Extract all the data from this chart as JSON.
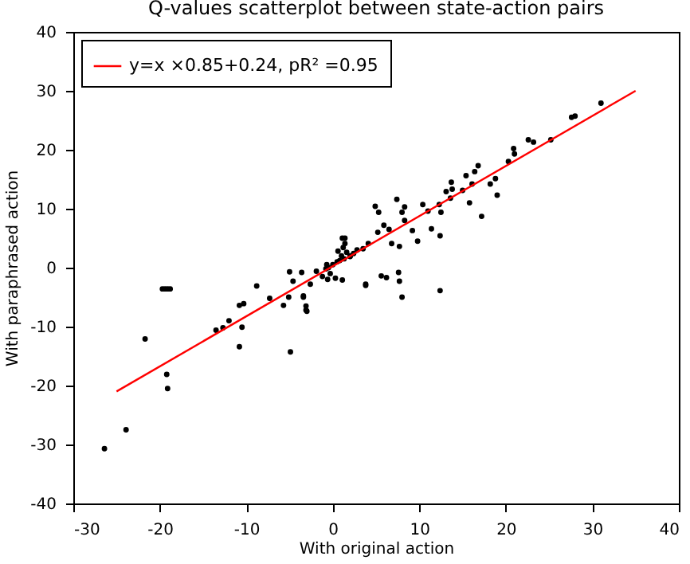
{
  "chart_data": {
    "type": "scatter",
    "title": "Q-values scatterplot between state-action pairs",
    "xlabel": "With original action",
    "ylabel": "With paraphrased action",
    "xlim": [
      -30,
      40
    ],
    "xticks": [
      -30,
      -20,
      -10,
      0,
      10,
      20,
      30,
      40
    ],
    "ylim": [
      -40,
      40
    ],
    "yticks": [
      -40,
      -30,
      -20,
      -10,
      0,
      10,
      20,
      30,
      40
    ],
    "grid": false,
    "legend": "top left",
    "series": [
      {
        "type": "scatter",
        "color": "#000000",
        "marker": "circle",
        "x": [
          -26.4,
          -23.9,
          -21.7,
          -19.7,
          -19.4,
          -19.1,
          -18.8,
          -19.2,
          -19.1,
          -13.5,
          -12.7,
          -12.0,
          -10.8,
          -10.3,
          -10.8,
          -10.5,
          -8.8,
          -7.3,
          -5.7,
          -4.9,
          -5.0,
          -4.6,
          -5.1,
          -3.6,
          -3.4,
          -3.1,
          -2.6,
          -1.9,
          -1.2,
          -0.8,
          -0.5,
          -0.3,
          0.0,
          0.5,
          0.8,
          1.0,
          1.3,
          1.6,
          2.0,
          2.4,
          2.8,
          -0.6,
          0.3,
          0.6,
          1.1,
          1.4,
          1.1,
          3.8,
          31.0,
          27.6,
          28.0,
          25.2,
          22.6,
          23.2,
          20.9,
          21.0,
          20.3,
          18.8,
          19.0,
          18.2,
          16.8,
          16.4,
          16.1,
          15.4,
          15.0,
          15.8,
          13.7,
          13.8,
          13.1,
          13.6,
          12.3,
          17.2,
          12.5,
          11.0,
          10.4,
          12.4,
          11.4,
          9.8,
          9.2,
          8.3,
          8.0,
          7.4,
          8.3,
          12.4,
          8.0,
          7.7,
          7.6,
          6.8,
          6.5,
          5.9,
          5.2,
          4.9,
          5.3,
          7.7,
          5.6,
          6.2,
          3.8,
          4.1,
          3.5,
          1.4,
          1.2,
          2.0,
          -0.7,
          -3.4,
          -3.1,
          -3.0
        ],
        "values": [
          -30.7,
          -27.5,
          -12.1,
          -3.6,
          -3.6,
          -3.6,
          -3.6,
          -18.1,
          -20.5,
          -10.6,
          -10.2,
          -9.0,
          -6.4,
          -6.1,
          -13.4,
          -10.1,
          -3.1,
          -5.2,
          -6.4,
          -14.3,
          -0.7,
          -2.3,
          -5.0,
          -0.8,
          -4.8,
          -7.2,
          -2.8,
          -0.6,
          -1.5,
          -0.2,
          0.0,
          -1.0,
          0.5,
          1.0,
          1.2,
          2.0,
          1.5,
          2.6,
          2.0,
          2.4,
          3.0,
          -2.0,
          -1.8,
          2.8,
          5.0,
          4.1,
          -2.1,
          -2.8,
          27.9,
          25.5,
          25.7,
          21.7,
          21.7,
          21.3,
          20.2,
          19.3,
          18.0,
          15.1,
          12.3,
          14.2,
          17.3,
          16.3,
          14.2,
          15.6,
          13.1,
          11.0,
          14.5,
          13.3,
          12.9,
          11.8,
          10.7,
          8.7,
          9.4,
          9.6,
          10.7,
          5.4,
          6.6,
          4.5,
          6.3,
          8.0,
          9.4,
          11.6,
          10.3,
          -3.9,
          -5.0,
          -2.3,
          -0.8,
          4.1,
          6.5,
          7.2,
          6.0,
          10.4,
          9.4,
          3.6,
          -1.4,
          -1.7,
          -3.0,
          4.1,
          3.2,
          5.0,
          3.4,
          1.9,
          0.5,
          -5.0,
          -6.5,
          -7.4
        ]
      },
      {
        "type": "line",
        "name": "y=x ×0.85+0.24, pR² =0.95",
        "color": "#ff0000",
        "line_style": "solid",
        "x": [
          -25,
          35
        ],
        "values": [
          -21.0,
          30.0
        ]
      }
    ]
  }
}
